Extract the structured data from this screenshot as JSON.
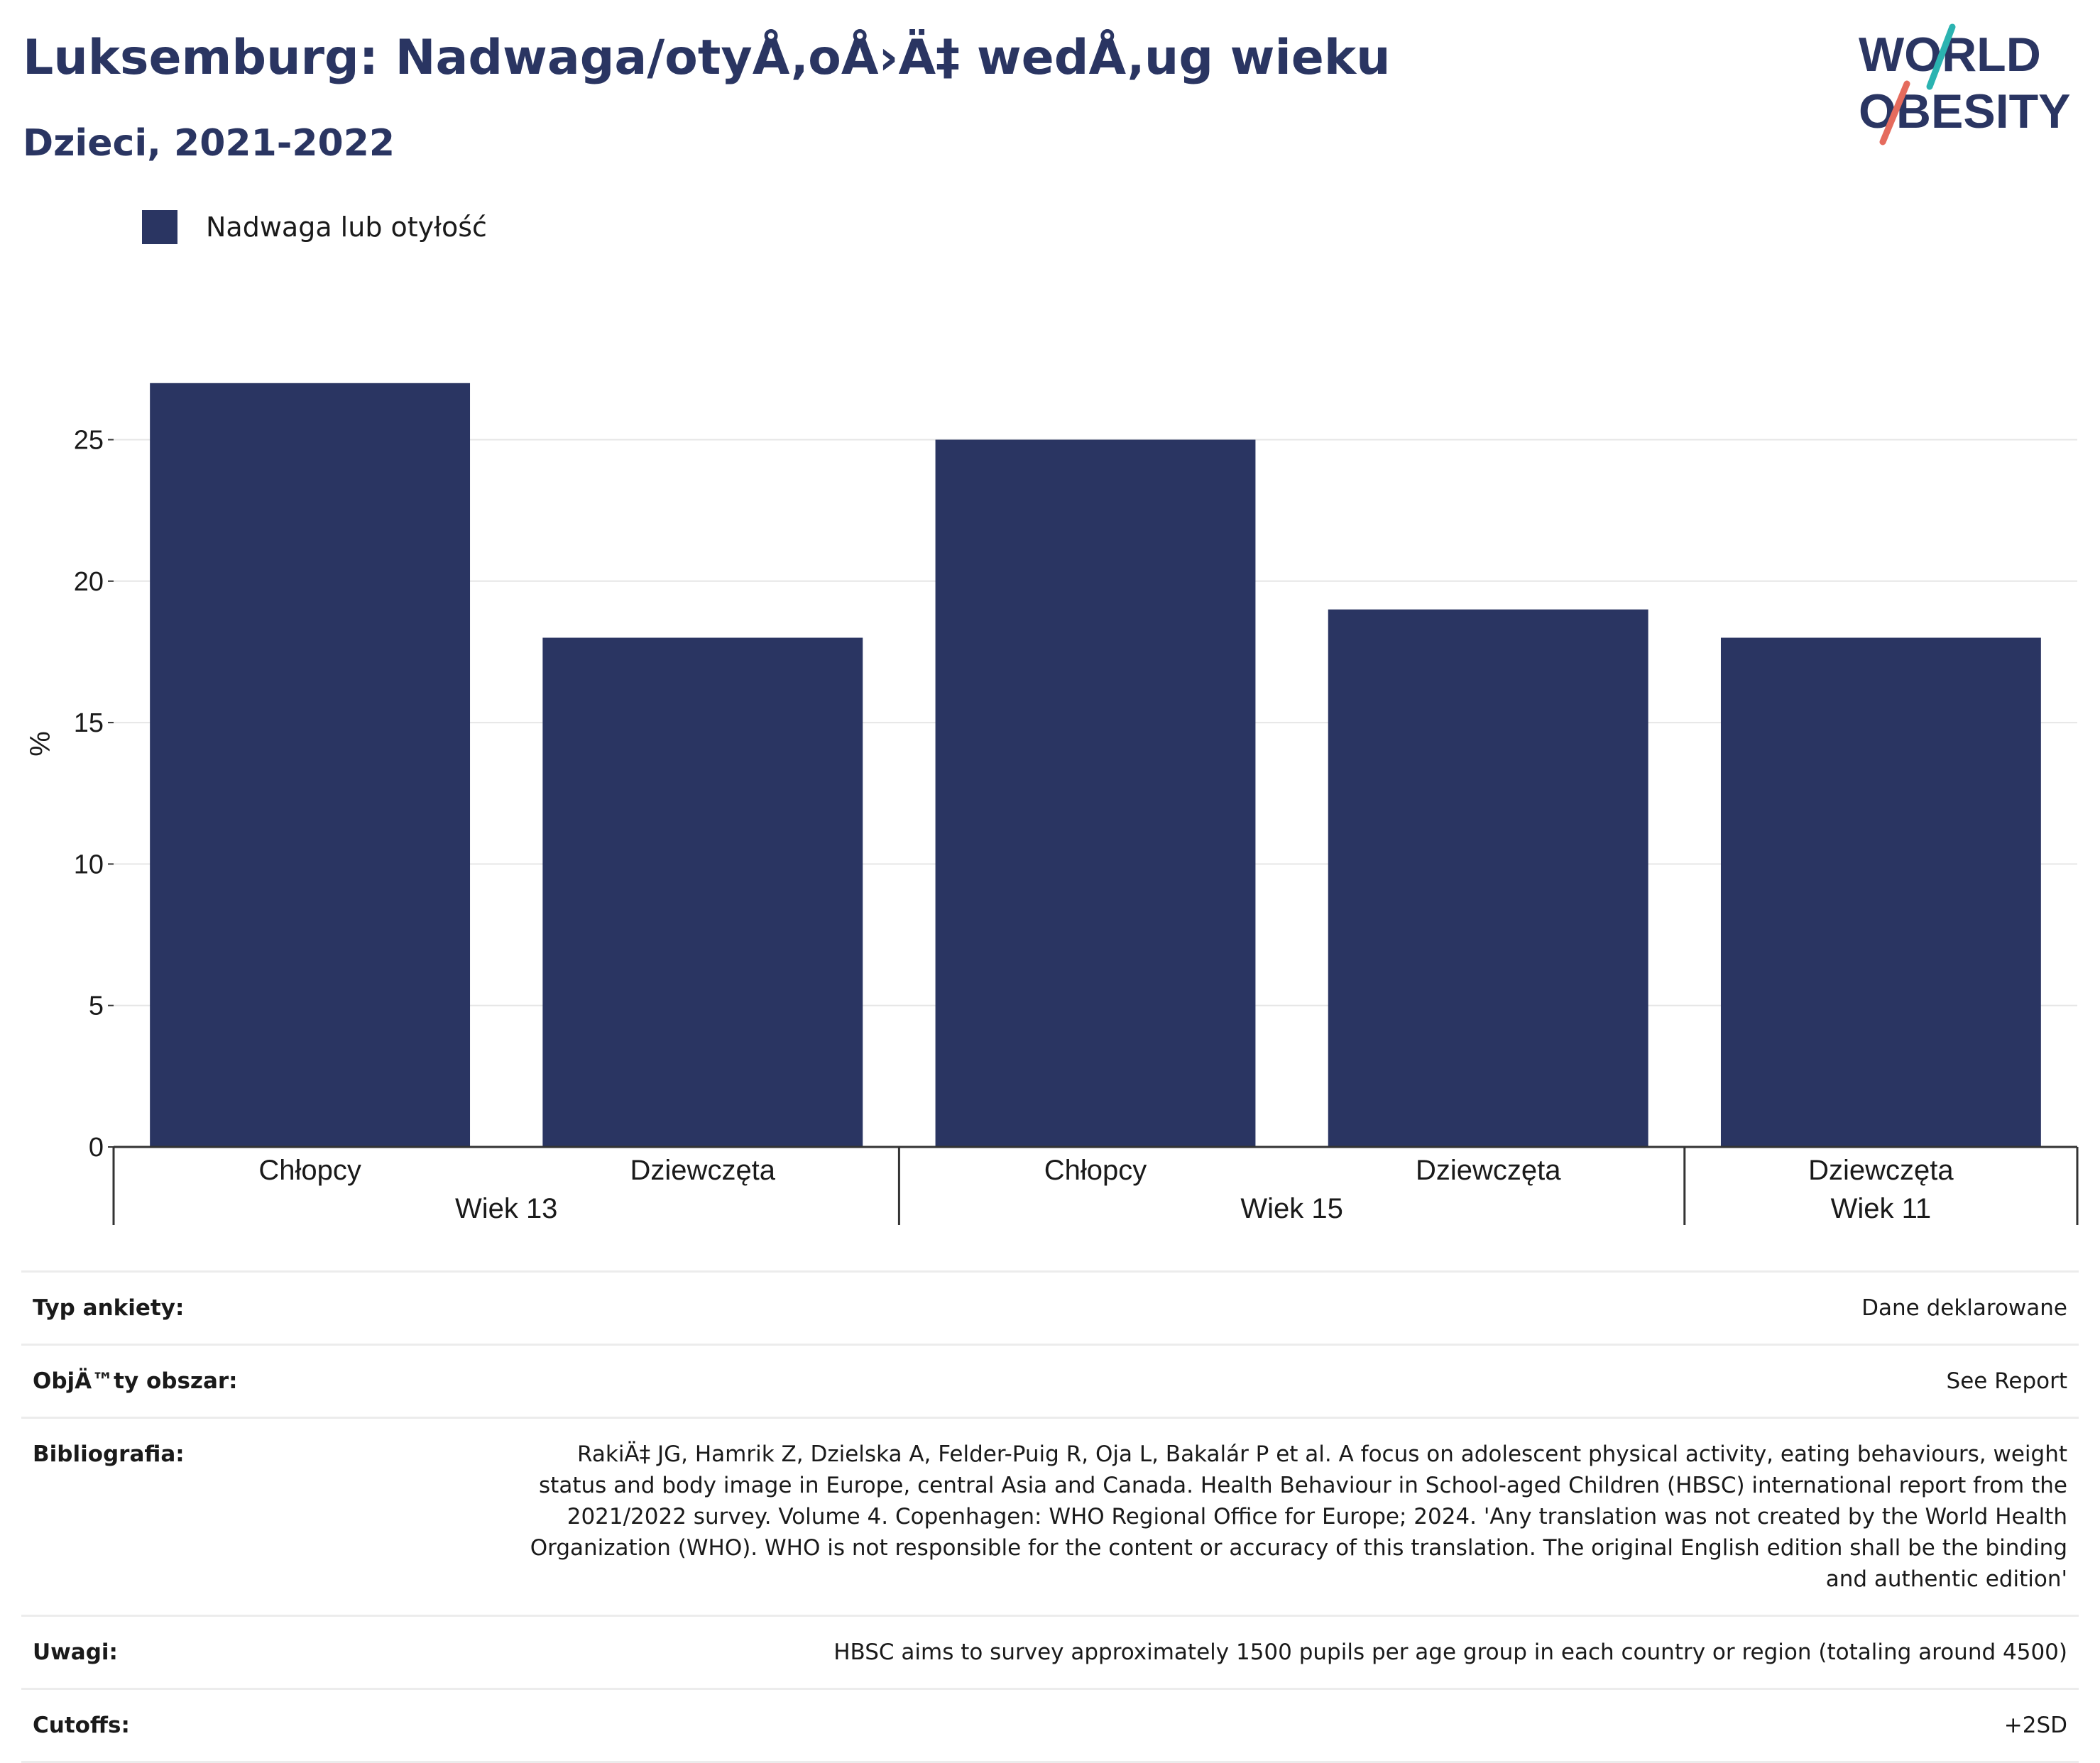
{
  "header": {
    "title": "Luksemburg: Nadwaga/otyÅ‚oÅ›Ä‡ wedÅ‚ug wieku",
    "subtitle": "Dzieci, 2021-2022"
  },
  "logo": {
    "line1": "WORLD",
    "line2": "OBESITY",
    "accent1": "#2bb3b1",
    "accent2": "#e56b5d"
  },
  "legend": {
    "label": "Nadwaga lub otyłość",
    "color": "#2a3562"
  },
  "chart_data": {
    "type": "bar",
    "ylabel": "%",
    "ylim": [
      0,
      28.5
    ],
    "yticks": [
      0,
      5,
      10,
      15,
      20,
      25
    ],
    "grid": true,
    "legend_position": "top-left",
    "color": "#2a3562",
    "series": [
      {
        "name": "Nadwaga lub otyłość",
        "values": [
          27,
          18,
          25,
          19,
          18
        ]
      }
    ],
    "categories": [
      "Chłopcy",
      "Dziewczęta",
      "Chłopcy",
      "Dziewczęta",
      "Dziewczęta"
    ],
    "groups": [
      {
        "label": "Wiek 13",
        "count": 2
      },
      {
        "label": "Wiek 15",
        "count": 2
      },
      {
        "label": "Wiek 11",
        "count": 1
      }
    ]
  },
  "meta": [
    {
      "key": "Typ ankiety:",
      "value": "Dane deklarowane"
    },
    {
      "key": "ObjÄ™ty obszar:",
      "value": "See Report"
    },
    {
      "key": "Bibliografia:",
      "value": "RakiÄ‡ JG, Hamrik Z, Dzielska A, Felder-Puig R, Oja L, Bakalár P et al. A focus on adolescent physical activity, eating behaviours, weight status and body image in Europe, central Asia and Canada. Health Behaviour in School-aged Children (HBSC) international report from the 2021/2022 survey. Volume 4. Copenhagen: WHO Regional Office for Europe; 2024. 'Any translation was not created by the World Health Organization (WHO). WHO is not responsible for the content or accuracy of this translation. The original English edition shall be the binding and authentic edition'"
    },
    {
      "key": "Uwagi:",
      "value": "HBSC aims to survey approximately 1500 pupils per age group in each country or region (totaling around 4500)"
    },
    {
      "key": "Cutoffs:",
      "value": "+2SD"
    }
  ]
}
